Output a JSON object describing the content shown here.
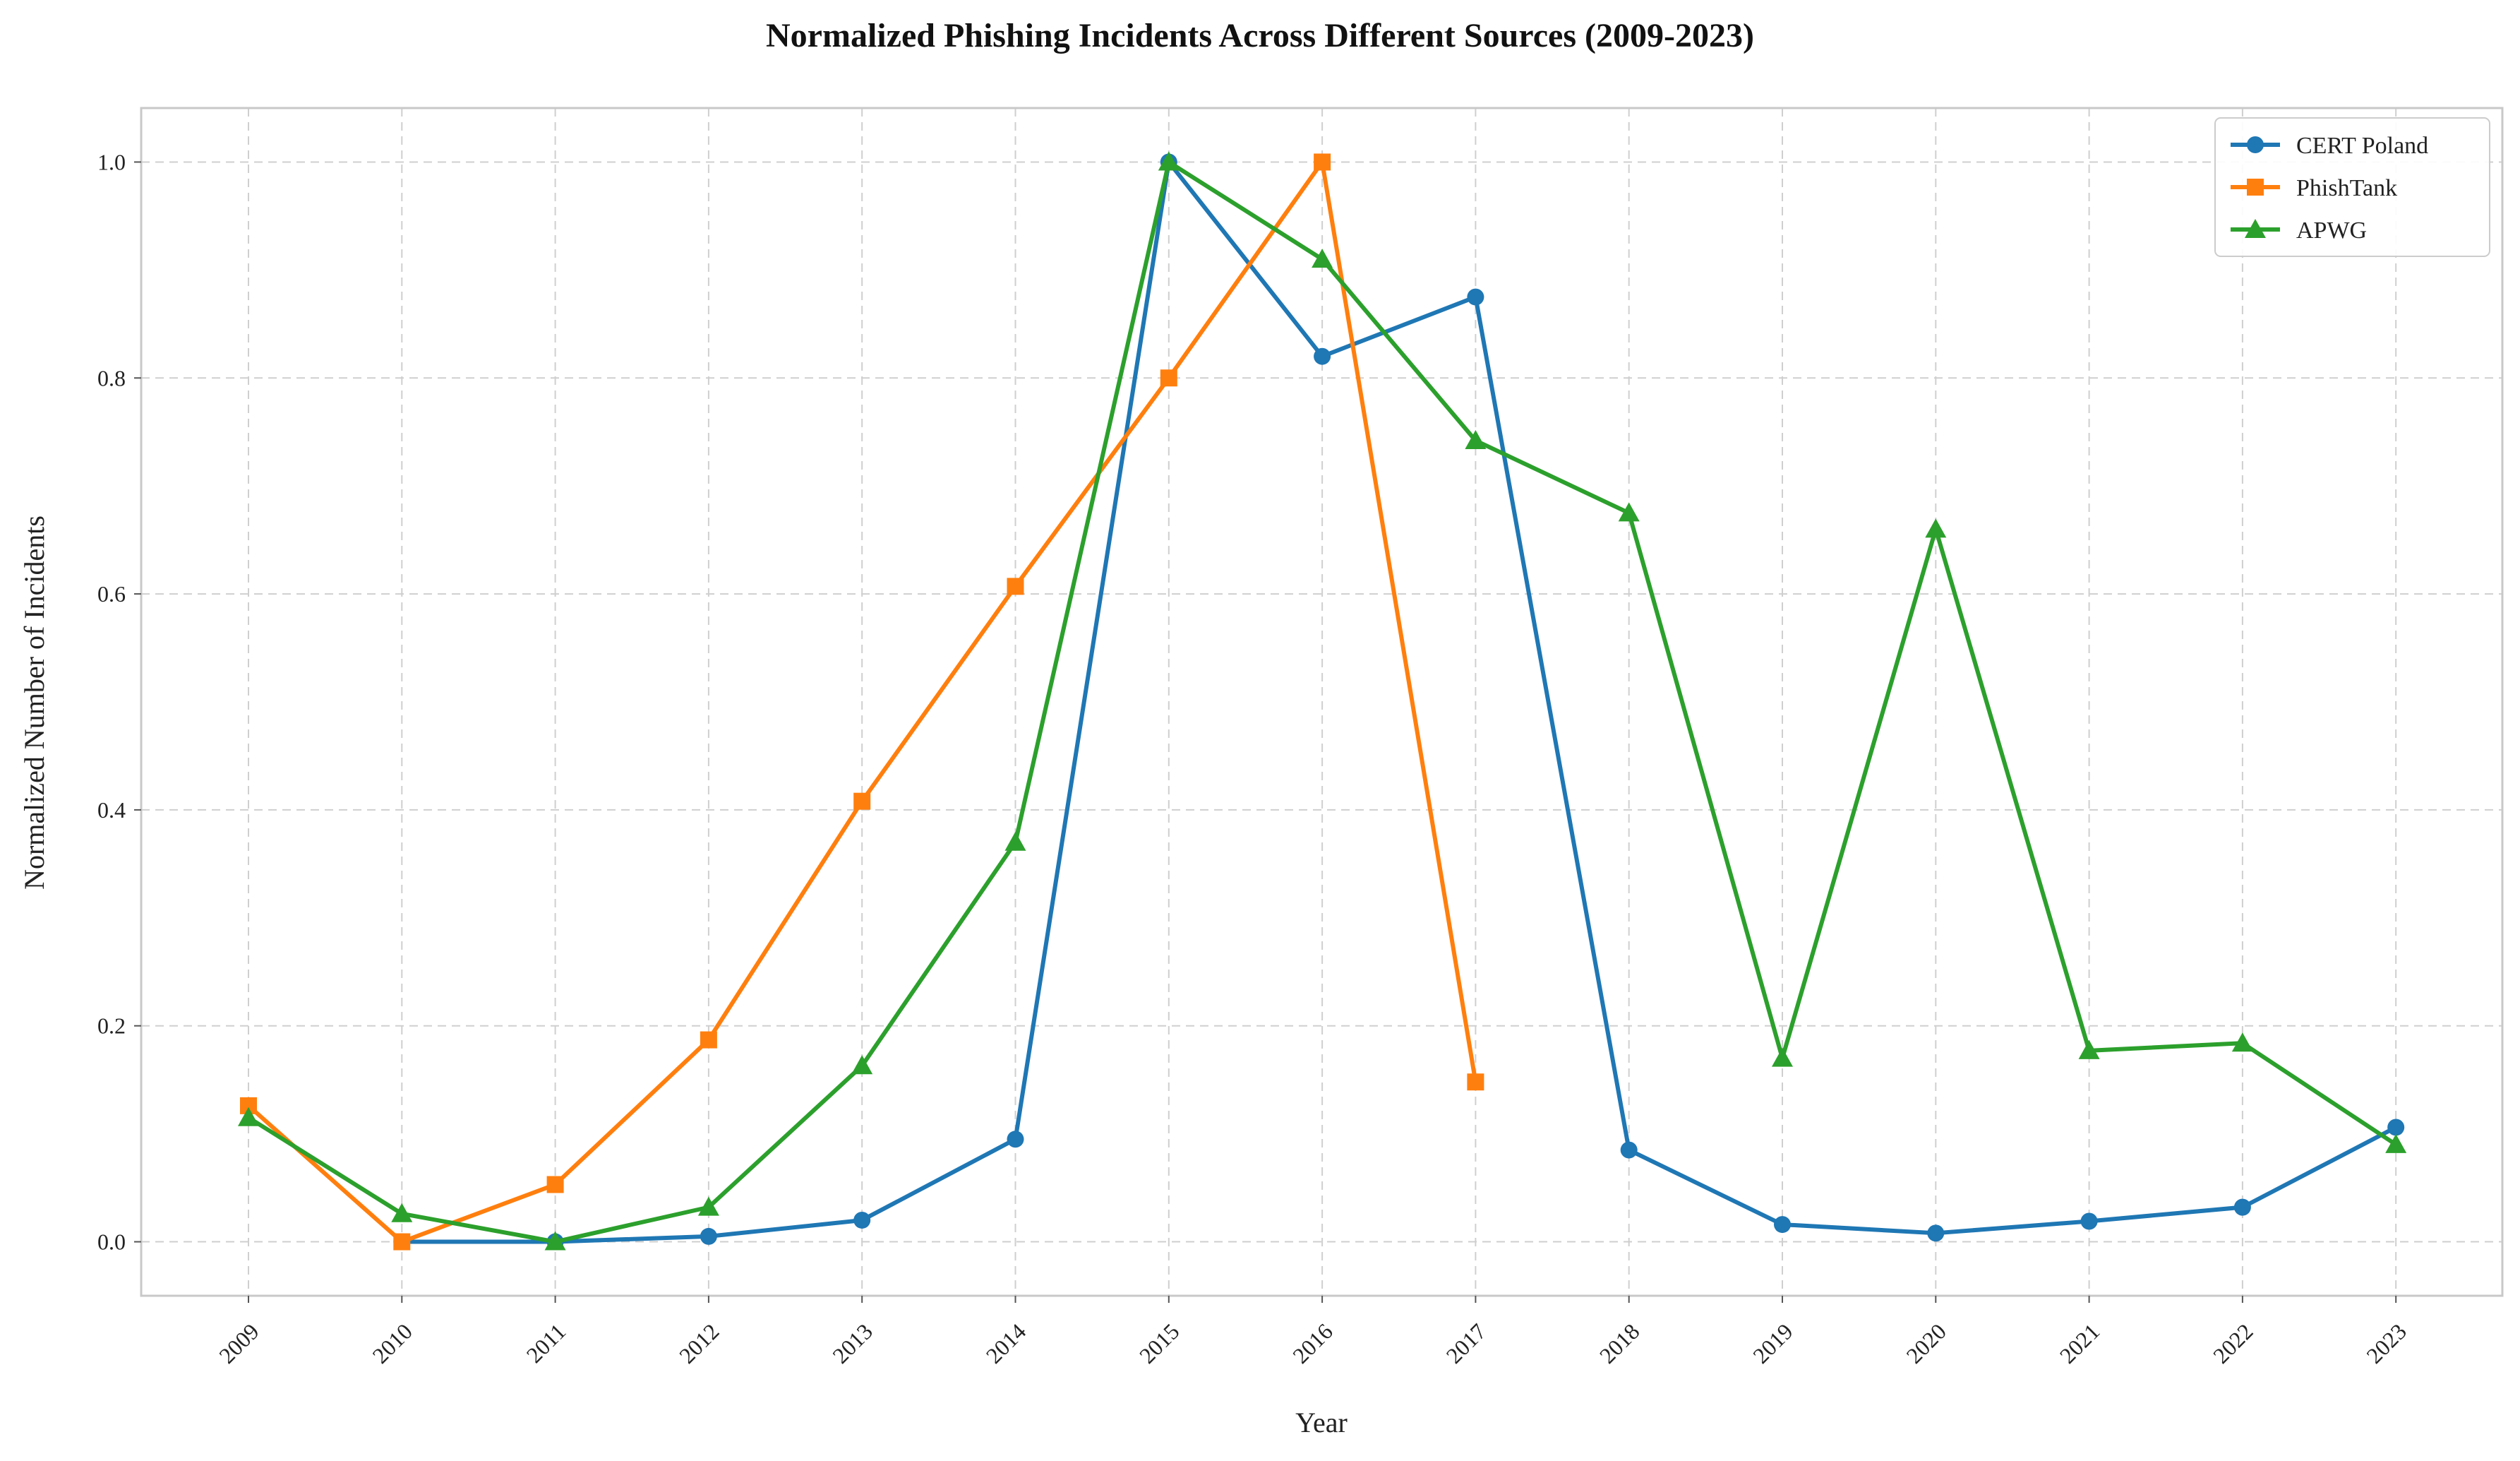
{
  "chart_data": {
    "type": "line",
    "title": "Normalized Phishing Incidents Across Different Sources (2009-2023)",
    "xlabel": "Year",
    "ylabel": "Normalized Number of Incidents",
    "categories": [
      "2009",
      "2010",
      "2011",
      "2012",
      "2013",
      "2014",
      "2015",
      "2016",
      "2017",
      "2018",
      "2019",
      "2020",
      "2021",
      "2022",
      "2023"
    ],
    "yticks": [
      "0.0",
      "0.2",
      "0.4",
      "0.6",
      "0.8",
      "1.0"
    ],
    "ylim": [
      -0.05,
      1.05
    ],
    "grid": true,
    "legend_position": "top-right",
    "series": [
      {
        "name": "CERT Poland",
        "color": "#1f77b4",
        "marker": "circle",
        "values": [
          null,
          0.0,
          0.0,
          0.005,
          0.02,
          0.095,
          1.0,
          0.82,
          0.875,
          0.085,
          0.016,
          0.008,
          0.019,
          0.032,
          0.106
        ]
      },
      {
        "name": "PhishTank",
        "color": "#ff7f0e",
        "marker": "square",
        "values": [
          0.126,
          0.0,
          0.053,
          0.187,
          0.408,
          0.607,
          0.8,
          1.0,
          0.148,
          null,
          null,
          null,
          null,
          null,
          null
        ]
      },
      {
        "name": "APWG",
        "color": "#2ca02c",
        "marker": "triangle",
        "values": [
          0.115,
          0.026,
          0.0,
          0.032,
          0.163,
          0.37,
          1.0,
          0.91,
          0.742,
          0.675,
          0.17,
          0.66,
          0.177,
          0.184,
          0.09
        ]
      }
    ]
  }
}
